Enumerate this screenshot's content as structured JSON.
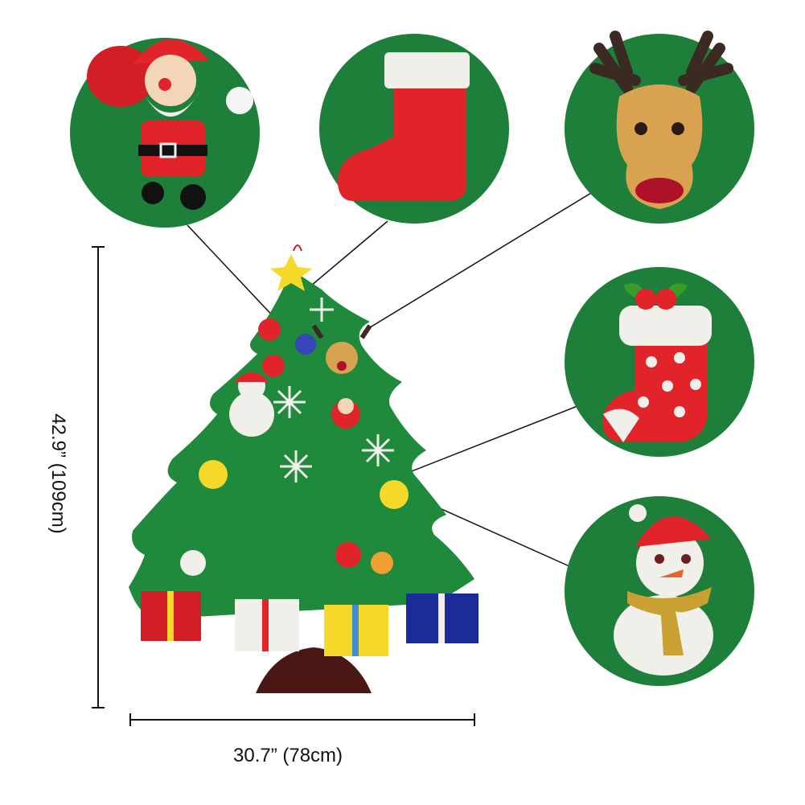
{
  "dimensions": {
    "height_label": "42.9” (109cm)",
    "width_label": "30.7” (78cm)"
  },
  "colors": {
    "felt_green": "#1f8a3c",
    "circle_green": "#1d7f3a",
    "felt_red": "#e0242a",
    "trunk_brown": "#4a1714",
    "felt_white": "#f1efe9",
    "star_yellow": "#f5d92a"
  },
  "callouts": [
    "santa",
    "stocking",
    "reindeer",
    "holly-stocking",
    "snowman"
  ]
}
